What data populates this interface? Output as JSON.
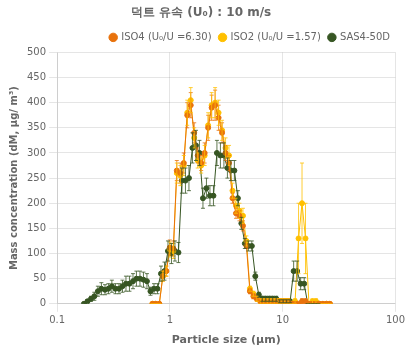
{
  "chart_data": {
    "type": "line",
    "title": "덕트 유속 (U₀) : 10 m/s",
    "xlabel": "Particle size (μm)",
    "ylabel": "Mass concentration (dM, μg/ m³)",
    "log": "x",
    "xlim": [
      0.1,
      100
    ],
    "xticks": [
      0.1,
      1,
      10,
      100
    ],
    "ylim": [
      0,
      500
    ],
    "yticks": [
      0,
      50,
      100,
      150,
      200,
      250,
      300,
      350,
      400,
      450,
      500
    ],
    "grid": true,
    "legend": "upper right",
    "series": [
      {
        "name": "ISO4 (U₀/U =6.30)",
        "color": "#E8720C",
        "marker": "o",
        "x": [
          0.7,
          0.75,
          0.806,
          0.866,
          0.93,
          0.999,
          1.073,
          1.152,
          1.237,
          1.328,
          1.426,
          1.531,
          1.644,
          1.765,
          1.895,
          2.034,
          2.184,
          2.345,
          2.518,
          2.703,
          2.902,
          3.116,
          3.345,
          3.591,
          3.856,
          4.14,
          4.445,
          4.772,
          5.124,
          5.501,
          5.906,
          6.341,
          6.807,
          7.308,
          7.845,
          8.421,
          9.04,
          9.703,
          10.414,
          11.178,
          12.0,
          12.882,
          13.83,
          14.848,
          15.943,
          17.118,
          18.381,
          19.737,
          21.193,
          22.756,
          24.432,
          26.231
        ],
        "values": [
          0,
          0,
          0,
          55,
          65,
          112,
          110,
          265,
          260,
          280,
          375,
          395,
          340,
          295,
          280,
          300,
          350,
          390,
          395,
          370,
          340,
          300,
          280,
          210,
          180,
          175,
          155,
          115,
          25,
          15,
          10,
          5,
          5,
          5,
          5,
          5,
          5,
          5,
          5,
          5,
          0,
          0,
          0,
          5,
          5,
          0,
          0,
          0,
          0,
          0,
          0,
          0
        ],
        "yerr": [
          0,
          0,
          0,
          10,
          10,
          15,
          15,
          20,
          20,
          20,
          25,
          25,
          20,
          15,
          15,
          20,
          25,
          25,
          30,
          25,
          20,
          15,
          15,
          10,
          10,
          10,
          10,
          5,
          5,
          5,
          5,
          5,
          5,
          5,
          5,
          5,
          5,
          5,
          5,
          5,
          0,
          0,
          0,
          5,
          5,
          0,
          0,
          0,
          0,
          0,
          0,
          0
        ]
      },
      {
        "name": "ISO2 (U₀/U =1.57)",
        "color": "#FFC000",
        "marker": "o",
        "x": [
          0.7,
          0.75,
          0.806,
          0.866,
          0.93,
          0.999,
          1.073,
          1.152,
          1.237,
          1.328,
          1.426,
          1.531,
          1.644,
          1.765,
          1.895,
          2.034,
          2.184,
          2.345,
          2.518,
          2.703,
          2.902,
          3.116,
          3.345,
          3.591,
          3.856,
          4.14,
          4.445,
          4.772,
          5.124,
          5.501,
          5.906,
          6.341,
          6.807,
          7.308,
          7.845,
          8.421,
          9.04,
          9.703,
          10.414,
          11.178,
          12.0,
          12.882,
          13.83,
          14.848,
          15.943,
          17.118,
          18.381,
          19.737,
          21.193,
          22.756,
          24.432,
          26.231
        ],
        "values": [
          0,
          0,
          0,
          55,
          65,
          108,
          105,
          260,
          255,
          275,
          380,
          405,
          330,
          285,
          275,
          295,
          355,
          395,
          400,
          380,
          345,
          310,
          295,
          225,
          195,
          185,
          175,
          125,
          30,
          20,
          10,
          5,
          5,
          5,
          5,
          5,
          5,
          5,
          5,
          5,
          0,
          5,
          130,
          200,
          130,
          0,
          5,
          5,
          0,
          0,
          0,
          0
        ],
        "yerr": [
          0,
          0,
          0,
          10,
          10,
          15,
          15,
          20,
          20,
          20,
          25,
          25,
          20,
          15,
          15,
          20,
          25,
          25,
          30,
          25,
          20,
          20,
          20,
          15,
          15,
          15,
          15,
          10,
          5,
          5,
          5,
          5,
          5,
          5,
          5,
          5,
          5,
          5,
          5,
          5,
          0,
          5,
          70,
          80,
          70,
          0,
          5,
          5,
          0,
          0,
          0,
          0
        ]
      },
      {
        "name": "SAS4-50D",
        "color": "#375623",
        "marker": "o",
        "x": [
          0.173,
          0.186,
          0.2,
          0.214,
          0.23,
          0.247,
          0.266,
          0.285,
          0.306,
          0.329,
          0.354,
          0.38,
          0.408,
          0.438,
          0.471,
          0.505,
          0.543,
          0.583,
          0.626,
          0.673,
          0.723,
          0.776,
          0.834,
          0.896,
          0.962,
          1.033,
          1.109,
          1.191,
          1.279,
          1.374,
          1.476,
          1.585,
          1.703,
          1.829,
          1.965,
          2.11,
          2.266,
          2.434,
          2.613,
          2.806,
          3.014,
          3.237,
          3.476,
          3.732,
          4.008,
          4.304,
          4.621,
          4.962,
          5.328,
          5.722,
          6.145,
          6.598,
          7.083,
          7.603,
          8.161,
          8.762,
          9.408,
          10.102,
          10.849,
          11.652,
          12.515,
          13.442,
          14.44,
          15.513,
          16.668,
          17.912,
          19.251,
          20.692
        ],
        "values": [
          0,
          5,
          10,
          15,
          25,
          30,
          28,
          30,
          35,
          30,
          30,
          35,
          40,
          40,
          45,
          50,
          50,
          48,
          45,
          25,
          30,
          30,
          60,
          65,
          105,
          100,
          105,
          102,
          245,
          245,
          250,
          310,
          315,
          300,
          210,
          230,
          215,
          215,
          300,
          295,
          295,
          270,
          265,
          265,
          210,
          160,
          120,
          115,
          115,
          55,
          18,
          10,
          10,
          10,
          10,
          10,
          5,
          5,
          5,
          5,
          65,
          65,
          40,
          40,
          0,
          0,
          0,
          0
        ],
        "yerr": [
          0,
          3,
          5,
          8,
          10,
          12,
          10,
          10,
          12,
          10,
          10,
          12,
          15,
          15,
          15,
          15,
          15,
          15,
          15,
          8,
          10,
          10,
          15,
          18,
          20,
          20,
          20,
          20,
          25,
          25,
          25,
          30,
          30,
          25,
          20,
          20,
          20,
          20,
          25,
          25,
          25,
          20,
          20,
          20,
          15,
          12,
          10,
          10,
          10,
          8,
          5,
          5,
          5,
          5,
          5,
          5,
          3,
          3,
          3,
          3,
          20,
          20,
          12,
          12,
          0,
          0,
          0,
          0
        ]
      }
    ]
  }
}
